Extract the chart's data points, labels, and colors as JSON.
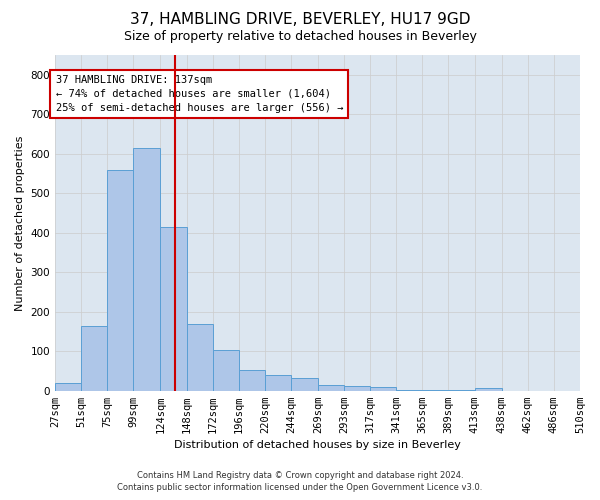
{
  "title": "37, HAMBLING DRIVE, BEVERLEY, HU17 9GD",
  "subtitle": "Size of property relative to detached houses in Beverley",
  "xlabel": "Distribution of detached houses by size in Beverley",
  "ylabel": "Number of detached properties",
  "property_label": "37 HAMBLING DRIVE: 137sqm",
  "annotation_line1": "← 74% of detached houses are smaller (1,604)",
  "annotation_line2": "25% of semi-detached houses are larger (556) →",
  "footer_line1": "Contains HM Land Registry data © Crown copyright and database right 2024.",
  "footer_line2": "Contains public sector information licensed under the Open Government Licence v3.0.",
  "bin_labels": [
    "27sqm",
    "51sqm",
    "75sqm",
    "99sqm",
    "124sqm",
    "148sqm",
    "172sqm",
    "196sqm",
    "220sqm",
    "244sqm",
    "269sqm",
    "293sqm",
    "317sqm",
    "341sqm",
    "365sqm",
    "389sqm",
    "413sqm",
    "438sqm",
    "462sqm",
    "486sqm",
    "510sqm"
  ],
  "bin_edges": [
    27,
    51,
    75,
    99,
    124,
    148,
    172,
    196,
    220,
    244,
    269,
    293,
    317,
    341,
    365,
    389,
    413,
    438,
    462,
    486,
    510
  ],
  "bar_heights": [
    20,
    165,
    560,
    615,
    415,
    170,
    103,
    52,
    40,
    31,
    14,
    12,
    9,
    1,
    1,
    1,
    8,
    0,
    0,
    0,
    7
  ],
  "bar_color": "#aec6e8",
  "bar_edgecolor": "#5a9fd4",
  "vline_x": 137,
  "vline_color": "#cc0000",
  "ylim": [
    0,
    850
  ],
  "yticks": [
    0,
    100,
    200,
    300,
    400,
    500,
    600,
    700,
    800
  ],
  "grid_color": "#cccccc",
  "bg_color": "#dce6f0",
  "annotation_box_color": "#cc0000",
  "title_fontsize": 11,
  "subtitle_fontsize": 9,
  "axis_label_fontsize": 8,
  "tick_fontsize": 7.5,
  "footer_fontsize": 6
}
